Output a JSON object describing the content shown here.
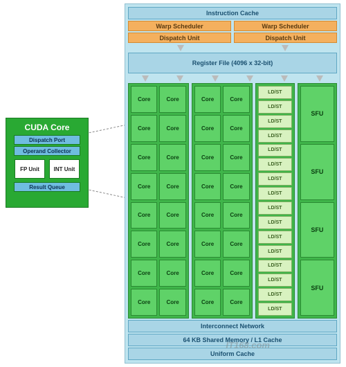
{
  "sm": {
    "bg": "#bfe4ef",
    "border": "#8fbfd0",
    "instruction_cache": "Instruction Cache",
    "warp_scheduler": "Warp Scheduler",
    "dispatch_unit": "Dispatch Unit",
    "register_file": "Register File (4096 x 32-bit)",
    "interconnect": "Interconnect Network",
    "shared_mem": "64 KB Shared Memory / L1 Cache",
    "uniform_cache": "Uniform Cache",
    "core_label": "Core",
    "ldst_label": "LD/ST",
    "sfu_label": "SFU",
    "blue_block": {
      "bg": "#a9d5e6",
      "border": "#5fa7c4",
      "text": "#1a5070"
    },
    "orange_block": {
      "bg": "#f4b05e",
      "border": "#d48a2f",
      "text": "#5a3a10"
    },
    "green_outer": {
      "bg": "#3fb54a",
      "border": "#2a8a32"
    },
    "green_core": {
      "bg": "#5fd268",
      "border": "#2a8a32",
      "text": "#0a4010"
    },
    "ldst_block": {
      "bg": "#d8f2c0",
      "border": "#7fb060",
      "text": "#3a6020"
    },
    "sfu_block": {
      "bg": "#5fd268",
      "border": "#2a8a32",
      "text": "#0a4010"
    },
    "core_count": 8,
    "ldst_count": 16,
    "sfu_count": 4
  },
  "cuda_core": {
    "bg": "#29a933",
    "border": "#1a7a22",
    "title": "CUDA Core",
    "title_color": "#ffffff",
    "dispatch_port": "Dispatch Port",
    "operand_collector": "Operand Collector",
    "fp_unit": "FP Unit",
    "int_unit": "INT Unit",
    "result_queue": "Result Queue",
    "header_bg": "#6fbde0",
    "header_text": "#0a3050",
    "unit_bg": "#ffffff",
    "unit_text": "#222222"
  },
  "watermark": "IT168.com"
}
